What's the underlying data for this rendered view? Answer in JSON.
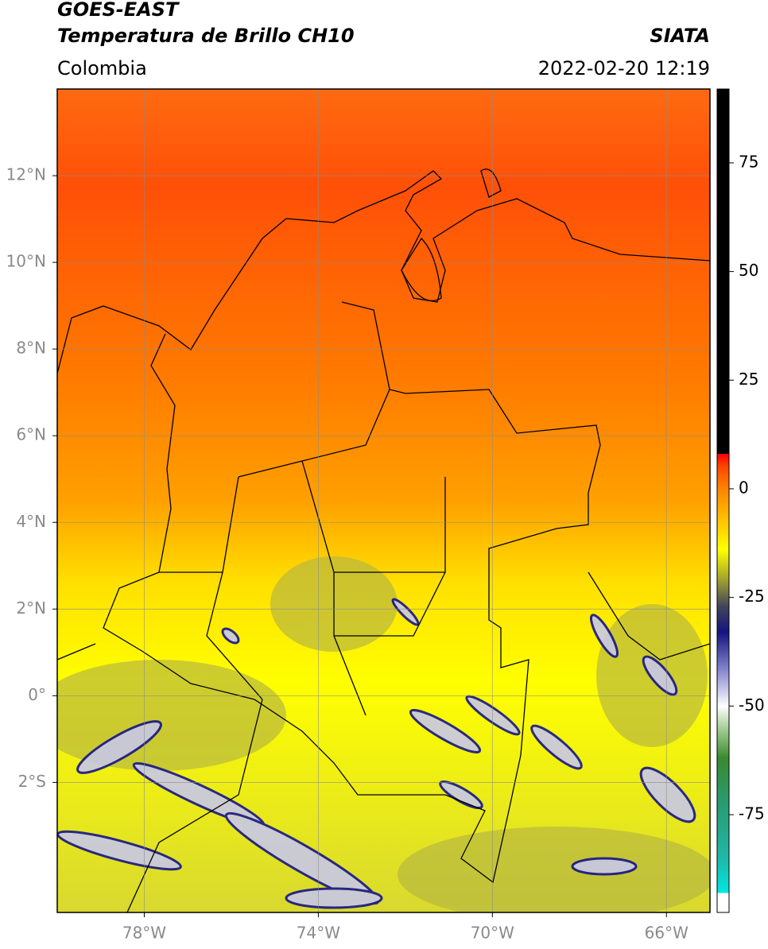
{
  "map": {
    "title": "GOES-EAST",
    "subtitle": "Temperatura de Brillo CH10",
    "source": "SIATA",
    "region": "Colombia",
    "timestamp": "2022-02-20 12:19",
    "xlim": [
      -80,
      -65
    ],
    "ylim": [
      -5,
      14
    ],
    "xticks": [
      {
        "value": -78,
        "label": "78°W"
      },
      {
        "value": -74,
        "label": "74°W"
      },
      {
        "value": -70,
        "label": "70°W"
      },
      {
        "value": -66,
        "label": "66°W"
      }
    ],
    "yticks": [
      {
        "value": 12,
        "label": "12°N"
      },
      {
        "value": 10,
        "label": "10°N"
      },
      {
        "value": 8,
        "label": "8°N"
      },
      {
        "value": 6,
        "label": "6°N"
      },
      {
        "value": 4,
        "label": "4°N"
      },
      {
        "value": 2,
        "label": "2°N"
      },
      {
        "value": 0,
        "label": "0°"
      },
      {
        "value": -2,
        "label": "2°S"
      }
    ],
    "grid": true,
    "colorbar": {
      "lim": [
        -97.5,
        92
      ],
      "ticks": [
        75,
        50,
        25,
        0,
        -25,
        -50,
        -75
      ],
      "stops": [
        {
          "value": -97.5,
          "color": "#ffffff"
        },
        {
          "value": -93,
          "color": "#ffffff"
        },
        {
          "value": -93,
          "color": "#00e8e0"
        },
        {
          "value": -85,
          "color": "#20b8a8"
        },
        {
          "value": -72,
          "color": "#2a9a70"
        },
        {
          "value": -62,
          "color": "#3a8a30"
        },
        {
          "value": -55,
          "color": "#a8d098"
        },
        {
          "value": -50,
          "color": "#ffffff"
        },
        {
          "value": -42,
          "color": "#8a8ad0"
        },
        {
          "value": -33,
          "color": "#141480"
        },
        {
          "value": -27,
          "color": "#44445a"
        },
        {
          "value": -21,
          "color": "#a0a030"
        },
        {
          "value": -14,
          "color": "#ffff00"
        },
        {
          "value": -7,
          "color": "#ffc000"
        },
        {
          "value": 0,
          "color": "#ff8400"
        },
        {
          "value": 5,
          "color": "#ff4800"
        },
        {
          "value": 8,
          "color": "#ff0000"
        },
        {
          "value": 8,
          "color": "#000000"
        },
        {
          "value": 92,
          "color": "#000000"
        }
      ]
    }
  }
}
